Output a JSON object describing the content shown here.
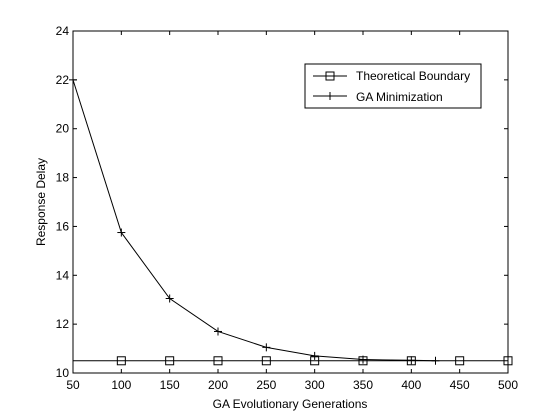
{
  "chart_data": {
    "type": "line",
    "xlabel": "GA Evolutionary Generations",
    "ylabel": "Response Delay",
    "xlim": [
      50,
      500
    ],
    "ylim": [
      10,
      24
    ],
    "xticks": [
      50,
      100,
      150,
      200,
      250,
      300,
      350,
      400,
      450,
      500
    ],
    "yticks": [
      10,
      12,
      14,
      16,
      18,
      20,
      22,
      24
    ],
    "grid": false,
    "legend_position": "top-right",
    "series": [
      {
        "name": "Theoretical Boundary",
        "marker": "square",
        "color": "#000000",
        "x": [
          50,
          100,
          150,
          200,
          250,
          300,
          350,
          400,
          450,
          500
        ],
        "y": [
          10.5,
          10.5,
          10.5,
          10.5,
          10.5,
          10.5,
          10.5,
          10.5,
          10.5,
          10.5
        ],
        "marker_x": [
          100,
          150,
          200,
          250,
          300,
          350,
          400,
          450,
          500
        ]
      },
      {
        "name": "GA Minimization",
        "marker": "plus",
        "color": "#000000",
        "x": [
          50,
          100,
          150,
          200,
          250,
          300,
          350,
          400,
          425
        ],
        "y": [
          22.0,
          15.75,
          13.05,
          11.7,
          11.05,
          10.7,
          10.55,
          10.52,
          10.5
        ]
      }
    ]
  }
}
